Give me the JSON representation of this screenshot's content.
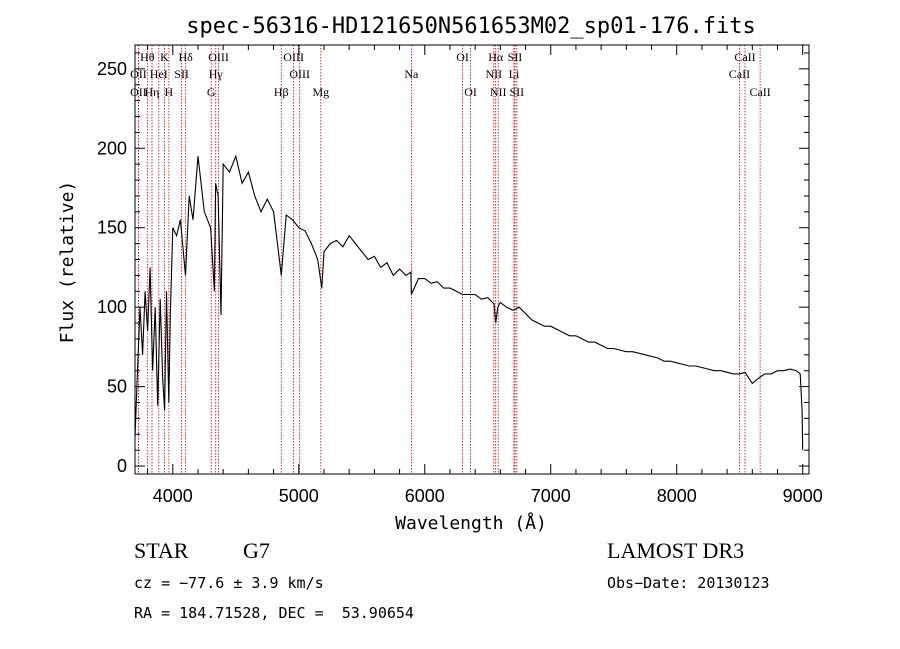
{
  "chart_data": {
    "type": "line",
    "title": "spec-56316-HD121650N561653M02_sp01-176.fits",
    "xlabel": "Wavelength (Å)",
    "ylabel": "Flux (relative)",
    "xlim": [
      3700,
      9050
    ],
    "ylim": [
      -5,
      265
    ],
    "xticks": [
      4000,
      5000,
      6000,
      7000,
      8000,
      9000
    ],
    "yticks": [
      0,
      50,
      100,
      150,
      200,
      250
    ],
    "grid": false,
    "series": [
      {
        "name": "spectrum",
        "x": [
          3700,
          3720,
          3740,
          3760,
          3780,
          3800,
          3820,
          3840,
          3860,
          3880,
          3900,
          3920,
          3935,
          3950,
          3968,
          3980,
          4000,
          4030,
          4060,
          4101,
          4130,
          4160,
          4200,
          4250,
          4300,
          4330,
          4340,
          4360,
          4383,
          4400,
          4450,
          4500,
          4550,
          4600,
          4650,
          4700,
          4750,
          4800,
          4861,
          4900,
          4950,
          5000,
          5050,
          5100,
          5150,
          5172,
          5183,
          5200,
          5250,
          5300,
          5350,
          5400,
          5450,
          5500,
          5550,
          5600,
          5650,
          5700,
          5750,
          5800,
          5850,
          5890,
          5893,
          5950,
          6000,
          6050,
          6100,
          6150,
          6200,
          6250,
          6300,
          6350,
          6400,
          6450,
          6500,
          6550,
          6563,
          6580,
          6600,
          6650,
          6700,
          6750,
          6800,
          6850,
          6900,
          6950,
          7000,
          7050,
          7100,
          7150,
          7200,
          7250,
          7300,
          7350,
          7400,
          7450,
          7500,
          7550,
          7600,
          7650,
          7700,
          7750,
          7800,
          7850,
          7900,
          7950,
          8000,
          8050,
          8100,
          8150,
          8200,
          8250,
          8300,
          8350,
          8400,
          8450,
          8500,
          8542,
          8600,
          8662,
          8700,
          8750,
          8800,
          8850,
          8900,
          8950,
          8980,
          8995,
          9000
        ],
        "y": [
          18,
          60,
          100,
          70,
          110,
          85,
          125,
          60,
          100,
          38,
          105,
          55,
          35,
          110,
          40,
          95,
          150,
          145,
          155,
          120,
          170,
          155,
          195,
          160,
          150,
          110,
          178,
          170,
          95,
          190,
          185,
          195,
          178,
          185,
          170,
          160,
          168,
          160,
          120,
          158,
          155,
          150,
          148,
          140,
          130,
          118,
          112,
          135,
          140,
          142,
          138,
          145,
          140,
          135,
          130,
          132,
          125,
          128,
          120,
          124,
          120,
          122,
          108,
          118,
          118,
          115,
          116,
          112,
          112,
          110,
          108,
          108,
          108,
          105,
          106,
          102,
          90,
          100,
          103,
          100,
          98,
          100,
          96,
          92,
          90,
          88,
          88,
          86,
          84,
          82,
          82,
          80,
          78,
          78,
          76,
          74,
          74,
          73,
          72,
          72,
          71,
          70,
          69,
          68,
          66,
          66,
          65,
          64,
          63,
          63,
          62,
          61,
          60,
          60,
          59,
          58,
          58,
          59,
          52,
          56,
          58,
          58,
          60,
          60,
          61,
          60,
          58,
          35,
          10
        ],
        "color": "#000000"
      }
    ],
    "lines": [
      {
        "label": "Hθ",
        "x": 3798,
        "row": 0
      },
      {
        "label": "OII",
        "x": 3727,
        "row": 1
      },
      {
        "label": "OII",
        "x": 3727,
        "row": 2
      },
      {
        "label": "HeI",
        "x": 3889,
        "row": 1
      },
      {
        "label": "Hη",
        "x": 3835,
        "row": 2
      },
      {
        "label": "K",
        "x": 3934,
        "row": 0
      },
      {
        "label": "SII",
        "x": 4070,
        "row": 1
      },
      {
        "label": "H",
        "x": 3969,
        "row": 2
      },
      {
        "label": "Hδ",
        "x": 4102,
        "row": 0
      },
      {
        "label": "OIII",
        "x": 4363,
        "row": 0
      },
      {
        "label": "Hγ",
        "x": 4341,
        "row": 1
      },
      {
        "label": "G",
        "x": 4305,
        "row": 2
      },
      {
        "label": "OIII",
        "x": 4959,
        "row": 0
      },
      {
        "label": "OIII",
        "x": 5007,
        "row": 1
      },
      {
        "label": "Hβ",
        "x": 4861,
        "row": 2
      },
      {
        "label": "Mg",
        "x": 5175,
        "row": 2
      },
      {
        "label": "Na",
        "x": 5894,
        "row": 1
      },
      {
        "label": "OI",
        "x": 6300,
        "row": 0
      },
      {
        "label": "OI",
        "x": 6364,
        "row": 2
      },
      {
        "label": "Hα",
        "x": 6563,
        "row": 0
      },
      {
        "label": "NII",
        "x": 6548,
        "row": 1
      },
      {
        "label": "NII",
        "x": 6583,
        "row": 2
      },
      {
        "label": "SII",
        "x": 6716,
        "row": 0
      },
      {
        "label": "Li",
        "x": 6708,
        "row": 1
      },
      {
        "label": "SII",
        "x": 6731,
        "row": 2
      },
      {
        "label": "CaII",
        "x": 8542,
        "row": 0
      },
      {
        "label": "CaII",
        "x": 8498,
        "row": 1
      },
      {
        "label": "CaII",
        "x": 8662,
        "row": 2
      }
    ]
  },
  "info": {
    "object_type": "STAR",
    "subclass": "G7",
    "survey": "LAMOST DR3",
    "velocity": "cz = −77.6 ± 3.9 km/s",
    "obs_date": "Obs−Date: 20130123",
    "coordinates": "RA = 184.71528, DEC =  53.90654"
  }
}
